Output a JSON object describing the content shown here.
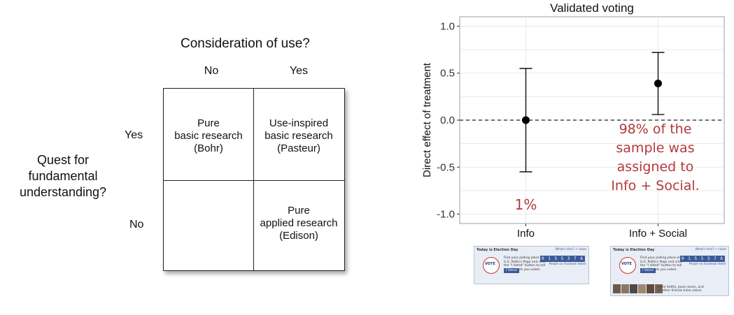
{
  "quadrant": {
    "title": "Consideration of use?",
    "col_no": "No",
    "col_yes": "Yes",
    "row_yes": "Yes",
    "row_no": "No",
    "side_label": [
      "Quest for",
      "fundamental",
      "understanding?"
    ],
    "cells": {
      "top_left": [
        "Pure",
        "basic research",
        "(Bohr)"
      ],
      "top_right": [
        "Use-inspired",
        "basic research",
        "(Pasteur)"
      ],
      "bottom_left": [],
      "bottom_right": [
        "Pure",
        "applied research",
        "(Edison)"
      ]
    }
  },
  "chart_data": {
    "type": "scatter",
    "title": "Validated voting",
    "ylabel": "Direct effect of treatment",
    "xlabel": "",
    "categories": [
      "Info",
      "Info + Social"
    ],
    "series": [
      {
        "points": [
          {
            "x": "Info",
            "y": 0.0,
            "lower": -0.55,
            "upper": 0.55
          },
          {
            "x": "Info + Social",
            "y": 0.39,
            "lower": 0.06,
            "upper": 0.72
          }
        ]
      }
    ],
    "ylim": [
      -1.1,
      1.1
    ],
    "yticks": [
      -1.0,
      -0.5,
      0.0,
      0.5,
      1.0
    ],
    "ytick_labels": [
      "-1.0",
      "-0.5",
      "0.0",
      "0.5",
      "1.0"
    ],
    "reference_line": 0.0,
    "grid": true,
    "annotations": [
      {
        "text": "1%",
        "near": "Info"
      },
      {
        "text_lines": [
          "98% of the",
          "sample was",
          "assigned to",
          "Info + Social."
        ],
        "near": "Info + Social"
      }
    ],
    "annotation_color": "#b23a3a"
  },
  "thumbnails": [
    {
      "header": "Today is Election Day",
      "header_link": "What's this? • close",
      "badge": "VOTE",
      "message": "Find your polling place on the U.S. Politics Page and click the \"I Voted\" button to tell your friends you voted.",
      "button": "I Voted",
      "counter": "0 1 5 5 3 7 6",
      "counter_label": "People on Facebook Voted"
    },
    {
      "header": "Today is Election Day",
      "header_link": "What's this? • close",
      "badge": "VOTE",
      "message": "Find your polling place on the U.S. Politics Page and click the \"I Voted\" button to tell your friends you voted.",
      "button": "I Voted",
      "counter": "0 1 5 5 3 7 6",
      "counter_label": "People on Facebook Voted",
      "friends": "Jaime Settle, Jason Jones, and 18 other friends have voted."
    }
  ]
}
